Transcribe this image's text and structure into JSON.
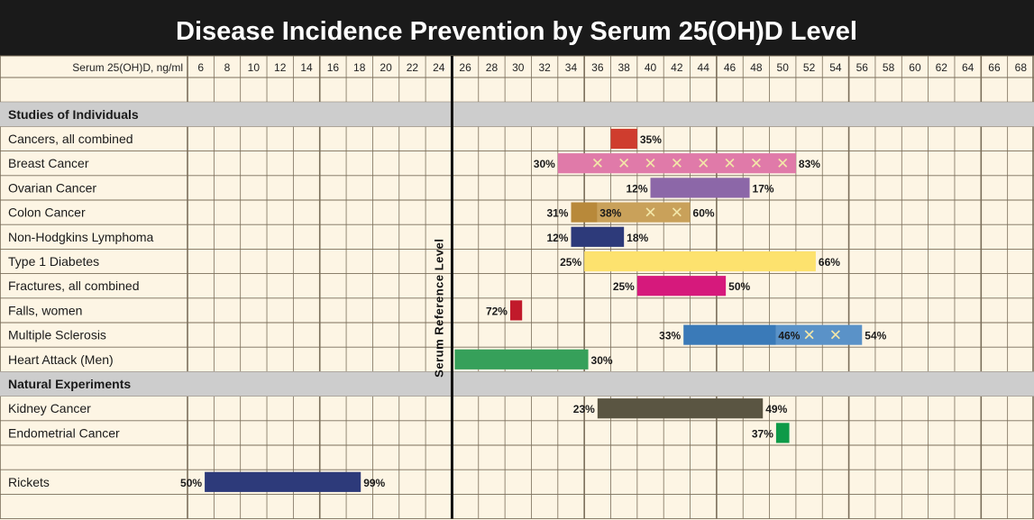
{
  "chart_data": {
    "type": "range-bar",
    "title": "Disease Incidence Prevention by Serum 25(OH)D Level",
    "xlabel": "Serum 25(OH)D, ng/ml",
    "x_ticks": [
      6,
      8,
      10,
      12,
      14,
      16,
      18,
      20,
      22,
      24,
      26,
      28,
      30,
      32,
      34,
      36,
      38,
      40,
      42,
      44,
      46,
      48,
      50,
      52,
      54,
      56,
      58,
      60,
      62,
      64,
      66,
      68
    ],
    "xlim": [
      5,
      69
    ],
    "reference_line": {
      "x": 25,
      "label": "Serum Reference Level"
    },
    "colors": {
      "header_bg": "#1a1a1a",
      "cell_bg": "#fdf5e4",
      "section_bg": "#cdcdcd",
      "grid": "#7a6e5a"
    },
    "rows": [
      {
        "kind": "blank"
      },
      {
        "kind": "section",
        "label": "Studies of Individuals"
      },
      {
        "kind": "bar",
        "label": "Cancers, all combined",
        "start": 37,
        "end": 39,
        "segments": [
          {
            "from": 37,
            "to": 39,
            "color": "#cf3d2e"
          }
        ],
        "start_value": "",
        "end_value": "35%"
      },
      {
        "kind": "bar",
        "label": "Breast Cancer",
        "start": 33,
        "end": 51,
        "segments": [
          {
            "from": 33,
            "to": 51,
            "color": "#e07aa9"
          }
        ],
        "x_marks": [
          36,
          38,
          40,
          42,
          44,
          46,
          48,
          50
        ],
        "start_value": "30%",
        "end_value": "83%"
      },
      {
        "kind": "bar",
        "label": "Ovarian Cancer",
        "start": 40,
        "end": 47.5,
        "segments": [
          {
            "from": 40,
            "to": 47.5,
            "color": "#8c67a8"
          }
        ],
        "start_value": "12%",
        "end_value": "17%"
      },
      {
        "kind": "bar",
        "label": "Colon Cancer",
        "start": 34,
        "end": 43,
        "segments": [
          {
            "from": 34,
            "to": 36,
            "color": "#b8893a"
          },
          {
            "from": 36,
            "to": 43,
            "color": "#c9a15a"
          }
        ],
        "x_marks": [
          40,
          42
        ],
        "mid_value": "38%",
        "mid_x": 36.1,
        "start_value": "31%",
        "end_value": "60%"
      },
      {
        "kind": "bar",
        "label": "Non-Hodgkins Lymphoma",
        "start": 34,
        "end": 38,
        "segments": [
          {
            "from": 34,
            "to": 38,
            "color": "#2d3a7a"
          }
        ],
        "start_value": "12%",
        "end_value": "18%"
      },
      {
        "kind": "bar",
        "label": "Type 1 Diabetes",
        "start": 35,
        "end": 52.5,
        "segments": [
          {
            "from": 35,
            "to": 52.5,
            "color": "#fde26e"
          }
        ],
        "start_value": "25%",
        "end_value": "66%"
      },
      {
        "kind": "bar",
        "label": "Fractures, all combined",
        "start": 39,
        "end": 45.7,
        "segments": [
          {
            "from": 39,
            "to": 45.7,
            "color": "#d6197c"
          }
        ],
        "start_value": "25%",
        "end_value": "50%"
      },
      {
        "kind": "bar",
        "label": "Falls, women",
        "start": 29.4,
        "end": 30.3,
        "segments": [
          {
            "from": 29.4,
            "to": 30.3,
            "color": "#c11a2b"
          }
        ],
        "start_value": "72%",
        "end_value": ""
      },
      {
        "kind": "bar",
        "label": "Multiple Sclerosis",
        "start": 42.5,
        "end": 56,
        "segments": [
          {
            "from": 42.5,
            "to": 49.5,
            "color": "#3a7ab8"
          },
          {
            "from": 49.5,
            "to": 56,
            "color": "#5a92c8"
          }
        ],
        "x_marks": [
          52,
          54
        ],
        "mid_value": "46%",
        "mid_x": 49.6,
        "start_value": "33%",
        "end_value": "54%"
      },
      {
        "kind": "bar",
        "label": "Heart Attack (Men)",
        "start": 25.2,
        "end": 35.3,
        "segments": [
          {
            "from": 25.2,
            "to": 35.3,
            "color": "#36a05a"
          }
        ],
        "start_value": "",
        "end_value": "30%"
      },
      {
        "kind": "section",
        "label": "Natural Experiments"
      },
      {
        "kind": "bar",
        "label": "Kidney Cancer",
        "start": 36,
        "end": 48.5,
        "segments": [
          {
            "from": 36,
            "to": 48.5,
            "color": "#5a5542"
          }
        ],
        "start_value": "23%",
        "end_value": "49%"
      },
      {
        "kind": "bar",
        "label": "Endometrial Cancer",
        "start": 49.5,
        "end": 50.5,
        "segments": [
          {
            "from": 49.5,
            "to": 50.5,
            "color": "#0e9a48"
          }
        ],
        "start_value": "37%",
        "end_value": ""
      },
      {
        "kind": "blank"
      },
      {
        "kind": "bar",
        "label": "Rickets",
        "start": 6.3,
        "end": 18.1,
        "segments": [
          {
            "from": 6.3,
            "to": 18.1,
            "color": "#2d3a7a"
          }
        ],
        "start_value": "50%",
        "end_value": "99%"
      },
      {
        "kind": "blank"
      }
    ]
  }
}
